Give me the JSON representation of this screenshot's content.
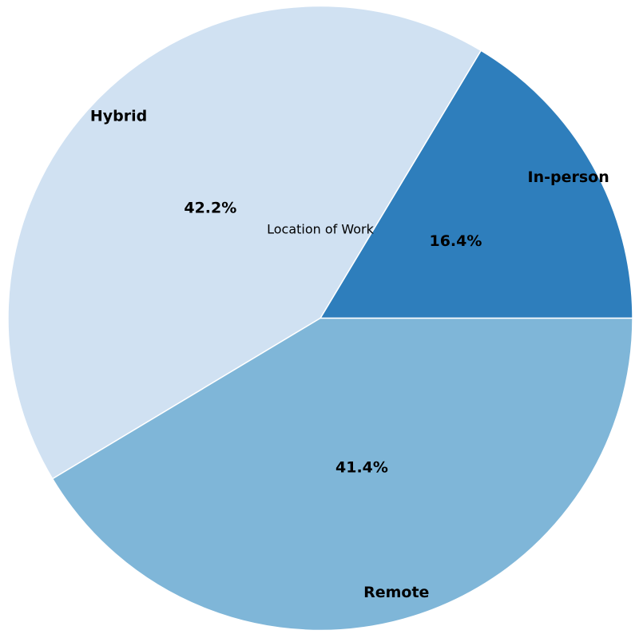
{
  "chart_data": {
    "type": "pie",
    "title": "Location of Work",
    "slices": [
      {
        "label": "In-person",
        "value": 16.4,
        "pct_label": "16.4%",
        "color": "#2e7ebc"
      },
      {
        "label": "Hybrid",
        "value": 42.2,
        "pct_label": "42.2%",
        "color": "#d0e1f2"
      },
      {
        "label": "Remote",
        "value": 41.4,
        "pct_label": "41.4%",
        "color": "#7fb6d8"
      }
    ],
    "edge_color": "#ffffff",
    "legend": "none"
  }
}
